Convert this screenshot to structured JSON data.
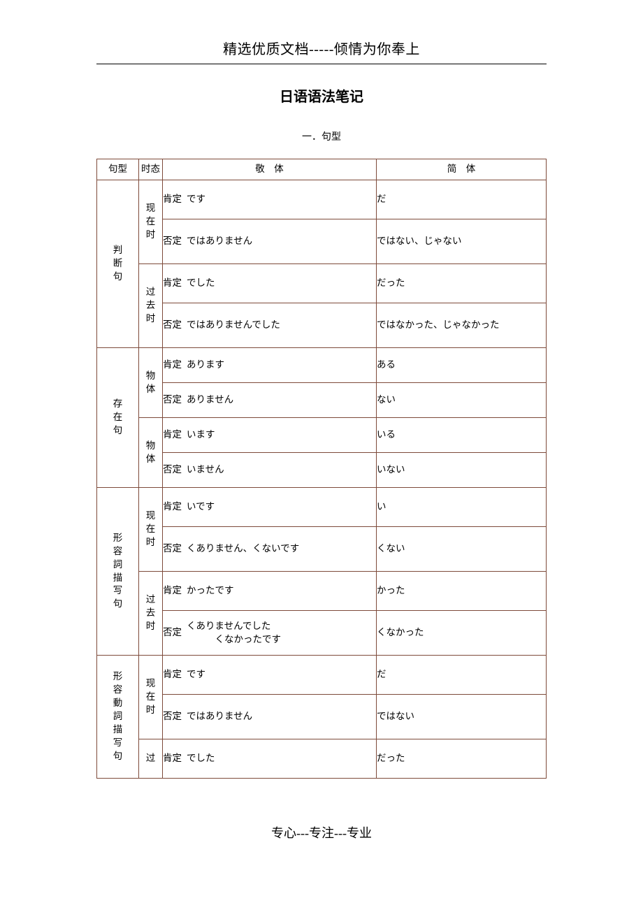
{
  "colors": {
    "border": "#7d4a3a",
    "background": "#ffffff",
    "text": "#000000"
  },
  "header": "精选优质文档-----倾情为你奉上",
  "title": "日语语法笔记",
  "section": "一．句型",
  "table": {
    "headers": {
      "sentence": "句型",
      "tense": "时态",
      "polite": "敬　体",
      "plain": "简　体"
    },
    "groups": [
      {
        "sentence": "判\n断\n句",
        "tenses": [
          {
            "label": "现\n在\n时",
            "rows": [
              {
                "kind": "肯定",
                "polite": "です",
                "plain": "だ",
                "h": "row-h"
              },
              {
                "kind": "否定",
                "polite": "ではありません",
                "plain": "ではない、じゃない",
                "h": "row-hx"
              }
            ]
          },
          {
            "label": "过\n去\n时",
            "rows": [
              {
                "kind": "肯定",
                "polite": "でした",
                "plain": "だった",
                "h": "row-h"
              },
              {
                "kind": "否定",
                "polite": "ではありませんでした",
                "plain": "ではなかった、じゃなかった",
                "h": "row-hx"
              }
            ]
          }
        ]
      },
      {
        "sentence": "存\n在\n句",
        "tenses": [
          {
            "label": "物\n体",
            "rows": [
              {
                "kind": "肯定",
                "polite": "あります",
                "plain": "ある",
                "h": "row-m"
              },
              {
                "kind": "否定",
                "polite": "ありません",
                "plain": "ない",
                "h": "row-m"
              }
            ]
          },
          {
            "label": "物\n体",
            "rows": [
              {
                "kind": "肯定",
                "polite": "います",
                "plain": "いる",
                "h": "row-m"
              },
              {
                "kind": "否定",
                "polite": "いません",
                "plain": "いない",
                "h": "row-m"
              }
            ]
          }
        ]
      },
      {
        "sentence": "形\n容\n詞\n描\n写\n句",
        "tenses": [
          {
            "label": "现\n在\n时",
            "rows": [
              {
                "kind": "肯定",
                "polite": "いです",
                "plain": "い",
                "h": "row-h"
              },
              {
                "kind": "否定",
                "polite": "くありません、くないです",
                "plain": "くない",
                "h": "row-hx"
              }
            ]
          },
          {
            "label": "过\n去\n时",
            "rows": [
              {
                "kind": "肯定",
                "polite": "かったです",
                "plain": "かった",
                "h": "row-h"
              },
              {
                "kind": "否定",
                "polite_lines": [
                  "くありませんでした",
                  "　　　くなかったです"
                ],
                "plain": "くなかった",
                "h": "row-hx"
              }
            ]
          }
        ]
      },
      {
        "sentence": "形\n容\n動\n詞\n描\n写\n句",
        "tenses": [
          {
            "label": "现\n在\n时",
            "rows": [
              {
                "kind": "肯定",
                "polite": "です",
                "plain": "だ",
                "h": "row-h"
              },
              {
                "kind": "否定",
                "polite": "ではありません",
                "plain": "ではない",
                "h": "row-hx"
              }
            ]
          },
          {
            "label": "过",
            "rows": [
              {
                "kind": "肯定",
                "polite": "でした",
                "plain": "だった",
                "h": "row-h"
              }
            ]
          }
        ]
      }
    ]
  },
  "footer": "专心---专注---专业"
}
